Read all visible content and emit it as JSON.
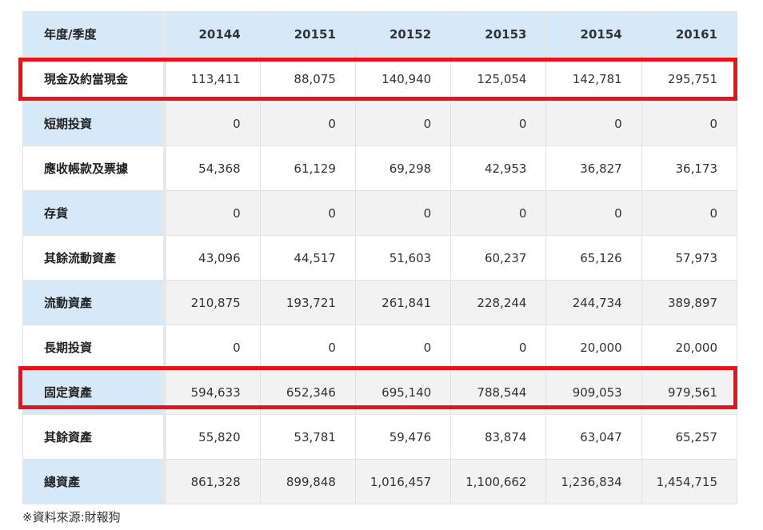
{
  "table": {
    "header": {
      "label": "年度/季度",
      "periods": [
        "20144",
        "20151",
        "20152",
        "20153",
        "20154",
        "20161"
      ]
    },
    "rows": [
      {
        "label": "現金及約當現金",
        "values": [
          "113,411",
          "88,075",
          "140,940",
          "125,054",
          "142,781",
          "295,751"
        ],
        "highlighted": true
      },
      {
        "label": "短期投資",
        "values": [
          "0",
          "0",
          "0",
          "0",
          "0",
          "0"
        ]
      },
      {
        "label": "應收帳款及票據",
        "values": [
          "54,368",
          "61,129",
          "69,298",
          "42,953",
          "36,827",
          "36,173"
        ]
      },
      {
        "label": "存貨",
        "values": [
          "0",
          "0",
          "0",
          "0",
          "0",
          "0"
        ]
      },
      {
        "label": "其餘流動資產",
        "values": [
          "43,096",
          "44,517",
          "51,603",
          "60,237",
          "65,126",
          "57,973"
        ]
      },
      {
        "label": "流動資產",
        "values": [
          "210,875",
          "193,721",
          "261,841",
          "228,244",
          "244,734",
          "389,897"
        ]
      },
      {
        "label": "長期投資",
        "values": [
          "0",
          "0",
          "0",
          "0",
          "20,000",
          "20,000"
        ]
      },
      {
        "label": "固定資產",
        "values": [
          "594,633",
          "652,346",
          "695,140",
          "788,544",
          "909,053",
          "979,561"
        ],
        "highlighted": true
      },
      {
        "label": "其餘資產",
        "values": [
          "55,820",
          "53,781",
          "59,476",
          "83,874",
          "63,047",
          "65,257"
        ]
      },
      {
        "label": "總資產",
        "values": [
          "861,328",
          "899,848",
          "1,016,457",
          "1,100,662",
          "1,236,834",
          "1,454,715"
        ]
      }
    ]
  },
  "source_note": "※資料來源:財報狗",
  "colors": {
    "header_bg": "#d6e9f8",
    "highlight": "#e8121c",
    "stripe": "#f2f2f2"
  }
}
